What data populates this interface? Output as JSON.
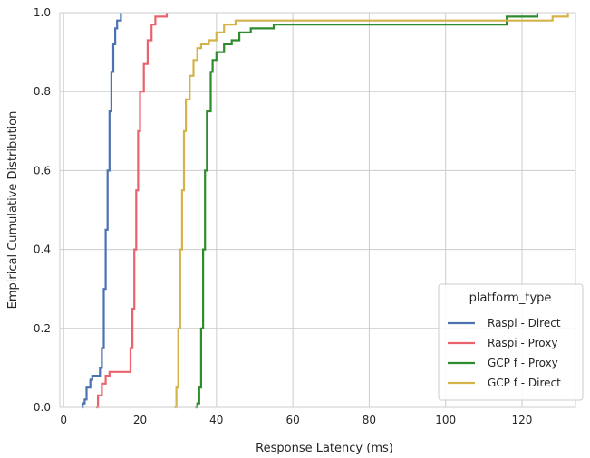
{
  "chart_data": {
    "type": "line",
    "subtype": "ecdf-step",
    "title": "",
    "xlabel": "Response Latency (ms)",
    "ylabel": "Empirical Cumulative Distribution",
    "xlim": [
      -1,
      134
    ],
    "ylim": [
      0,
      1
    ],
    "x_ticks": [
      0,
      20,
      40,
      60,
      80,
      100,
      120
    ],
    "y_ticks": [
      0.0,
      0.2,
      0.4,
      0.6,
      0.8,
      1.0
    ],
    "x_tick_labels": [
      "0",
      "20",
      "40",
      "60",
      "80",
      "100",
      "120"
    ],
    "y_tick_labels": [
      "0.0",
      "0.2",
      "0.4",
      "0.6",
      "0.8",
      "1.0"
    ],
    "grid": true,
    "legend": {
      "title": "platform_type",
      "position": "lower-right"
    },
    "series": [
      {
        "name": "Raspi - Direct",
        "color": "#4c72b0",
        "points": [
          [
            4.8,
            0.0
          ],
          [
            5.0,
            0.01
          ],
          [
            5.5,
            0.02
          ],
          [
            6.0,
            0.05
          ],
          [
            7.0,
            0.07
          ],
          [
            7.5,
            0.08
          ],
          [
            9.0,
            0.08
          ],
          [
            9.5,
            0.1
          ],
          [
            10.0,
            0.15
          ],
          [
            10.5,
            0.3
          ],
          [
            11.0,
            0.45
          ],
          [
            11.5,
            0.6
          ],
          [
            12.0,
            0.75
          ],
          [
            12.5,
            0.85
          ],
          [
            13.0,
            0.92
          ],
          [
            13.5,
            0.96
          ],
          [
            14.0,
            0.98
          ],
          [
            15.0,
            1.0
          ]
        ]
      },
      {
        "name": "Raspi - Proxy",
        "color": "#e8636d",
        "points": [
          [
            8.5,
            0.0
          ],
          [
            9.0,
            0.03
          ],
          [
            10.0,
            0.06
          ],
          [
            11.0,
            0.08
          ],
          [
            12.0,
            0.09
          ],
          [
            17.0,
            0.09
          ],
          [
            17.5,
            0.15
          ],
          [
            18.0,
            0.25
          ],
          [
            18.5,
            0.4
          ],
          [
            19.0,
            0.55
          ],
          [
            19.5,
            0.7
          ],
          [
            20.0,
            0.8
          ],
          [
            21.0,
            0.87
          ],
          [
            22.0,
            0.93
          ],
          [
            23.0,
            0.97
          ],
          [
            24.0,
            0.99
          ],
          [
            27.0,
            1.0
          ]
        ]
      },
      {
        "name": "GCP f - Proxy",
        "color": "#2e8b2e",
        "points": [
          [
            34.5,
            0.0
          ],
          [
            35.0,
            0.01
          ],
          [
            35.5,
            0.05
          ],
          [
            36.0,
            0.2
          ],
          [
            36.5,
            0.4
          ],
          [
            37.0,
            0.6
          ],
          [
            37.5,
            0.75
          ],
          [
            38.5,
            0.85
          ],
          [
            39.0,
            0.88
          ],
          [
            40.0,
            0.9
          ],
          [
            42.0,
            0.92
          ],
          [
            44.0,
            0.93
          ],
          [
            46.0,
            0.95
          ],
          [
            49.0,
            0.96
          ],
          [
            55.0,
            0.97
          ],
          [
            115.0,
            0.97
          ],
          [
            116.0,
            0.99
          ],
          [
            124.0,
            1.0
          ]
        ]
      },
      {
        "name": "GCP f - Direct",
        "color": "#d4b44a",
        "points": [
          [
            29.0,
            0.0
          ],
          [
            29.5,
            0.05
          ],
          [
            30.0,
            0.2
          ],
          [
            30.5,
            0.4
          ],
          [
            31.0,
            0.55
          ],
          [
            31.5,
            0.7
          ],
          [
            32.0,
            0.78
          ],
          [
            33.0,
            0.84
          ],
          [
            34.0,
            0.88
          ],
          [
            35.0,
            0.91
          ],
          [
            36.0,
            0.92
          ],
          [
            38.0,
            0.93
          ],
          [
            40.0,
            0.95
          ],
          [
            42.0,
            0.97
          ],
          [
            45.0,
            0.98
          ],
          [
            120.0,
            0.98
          ],
          [
            128.0,
            0.99
          ],
          [
            132.0,
            1.0
          ]
        ]
      }
    ]
  }
}
